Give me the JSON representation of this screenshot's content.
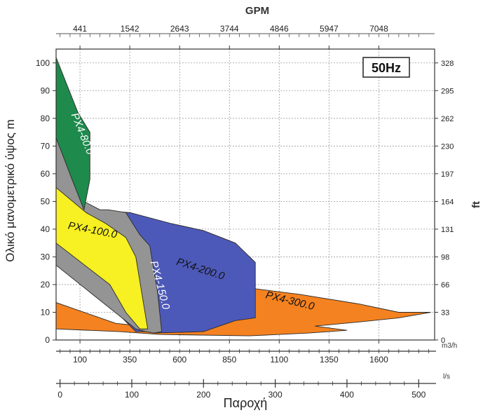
{
  "chart_data": {
    "type": "area",
    "title": "",
    "badge": "50Hz",
    "ylabel": "Ολικό μανομετρικό ύψος m",
    "ylim": [
      0,
      105
    ],
    "yticks": [
      0,
      10,
      20,
      30,
      40,
      50,
      60,
      70,
      80,
      90,
      100
    ],
    "y2label": "ft",
    "y2ticks": [
      "0",
      "33",
      "66",
      "98",
      "131",
      "164",
      "197",
      "230",
      "262",
      "295",
      "328"
    ],
    "top_axis": {
      "label": "GPM",
      "ticks": [
        {
          "x": 100,
          "label": "441"
        },
        {
          "x": 350,
          "label": "1542"
        },
        {
          "x": 600,
          "label": "2643"
        },
        {
          "x": 850,
          "label": "3744"
        },
        {
          "x": 1100,
          "label": "4846"
        },
        {
          "x": 1350,
          "label": "5947"
        },
        {
          "x": 1600,
          "label": "7048"
        }
      ]
    },
    "x_axis_m3h": {
      "unit": "m3/h",
      "xlim": [
        -20,
        1880
      ],
      "ticks": [
        100,
        350,
        600,
        850,
        1100,
        1350,
        1600
      ]
    },
    "x_axis_ls": {
      "unit": "l/s",
      "ticks": [
        0,
        100,
        200,
        300,
        400,
        500
      ]
    },
    "xlabel": "Παροχή",
    "series": [
      {
        "name": "PX4-300.0",
        "color": "#f58220",
        "label_pos": [
          1150,
          13
        ],
        "label_angle": 14,
        "polygon": [
          [
            -20,
            13.5
          ],
          [
            280,
            6
          ],
          [
            420,
            5
          ],
          [
            700,
            5
          ],
          [
            960,
            8
          ],
          [
            980,
            18.5
          ],
          [
            1200,
            16.5
          ],
          [
            1500,
            13
          ],
          [
            1700,
            10
          ],
          [
            1860,
            10
          ],
          [
            1700,
            8
          ],
          [
            1500,
            6.5
          ],
          [
            1280,
            5
          ],
          [
            1440,
            3.5
          ],
          [
            1250,
            2.5
          ],
          [
            950,
            1.5
          ],
          [
            500,
            2
          ],
          [
            300,
            3
          ],
          [
            -20,
            4
          ]
        ]
      },
      {
        "name": "PX4-200.0",
        "color": "#4d59b8",
        "label_pos": [
          700,
          24.5
        ],
        "label_angle": 18,
        "polygon": [
          [
            -20,
            32
          ],
          [
            380,
            3
          ],
          [
            430,
            3
          ],
          [
            470,
            2.5
          ],
          [
            720,
            3
          ],
          [
            880,
            7
          ],
          [
            980,
            8
          ],
          [
            980,
            28
          ],
          [
            880,
            35
          ],
          [
            720,
            39.5
          ],
          [
            560,
            42
          ],
          [
            350,
            46
          ],
          [
            150,
            47
          ],
          [
            40,
            40
          ],
          [
            -20,
            38
          ]
        ]
      },
      {
        "name": "PX4-150.0",
        "color": "#949494",
        "label_pos": [
          485,
          19.5
        ],
        "label_angle": 75,
        "polygon": [
          [
            -20,
            73
          ],
          [
            120,
            50
          ],
          [
            200,
            47
          ],
          [
            240,
            47
          ],
          [
            330,
            46
          ],
          [
            400,
            38
          ],
          [
            450,
            34
          ],
          [
            490,
            17
          ],
          [
            510,
            3
          ],
          [
            470,
            2.5
          ],
          [
            430,
            3
          ],
          [
            380,
            4
          ],
          [
            -20,
            27
          ]
        ]
      },
      {
        "name": "PX4-100.0",
        "color": "#f7f022",
        "label_pos": [
          160,
          38.5
        ],
        "label_angle": 11,
        "polygon": [
          [
            -20,
            55
          ],
          [
            130,
            46
          ],
          [
            230,
            42
          ],
          [
            330,
            37
          ],
          [
            380,
            30
          ],
          [
            440,
            4
          ],
          [
            400,
            4
          ],
          [
            330,
            10
          ],
          [
            250,
            20
          ],
          [
            -20,
            35
          ]
        ]
      },
      {
        "name": "PX4-80.0",
        "color": "#1e8a4c",
        "label_pos": [
          97,
          74
        ],
        "label_angle": 68,
        "polygon": [
          [
            -20,
            102
          ],
          [
            90,
            82
          ],
          [
            150,
            75
          ],
          [
            150,
            58
          ],
          [
            120,
            47
          ],
          [
            60,
            58
          ],
          [
            -20,
            73
          ]
        ]
      }
    ]
  }
}
